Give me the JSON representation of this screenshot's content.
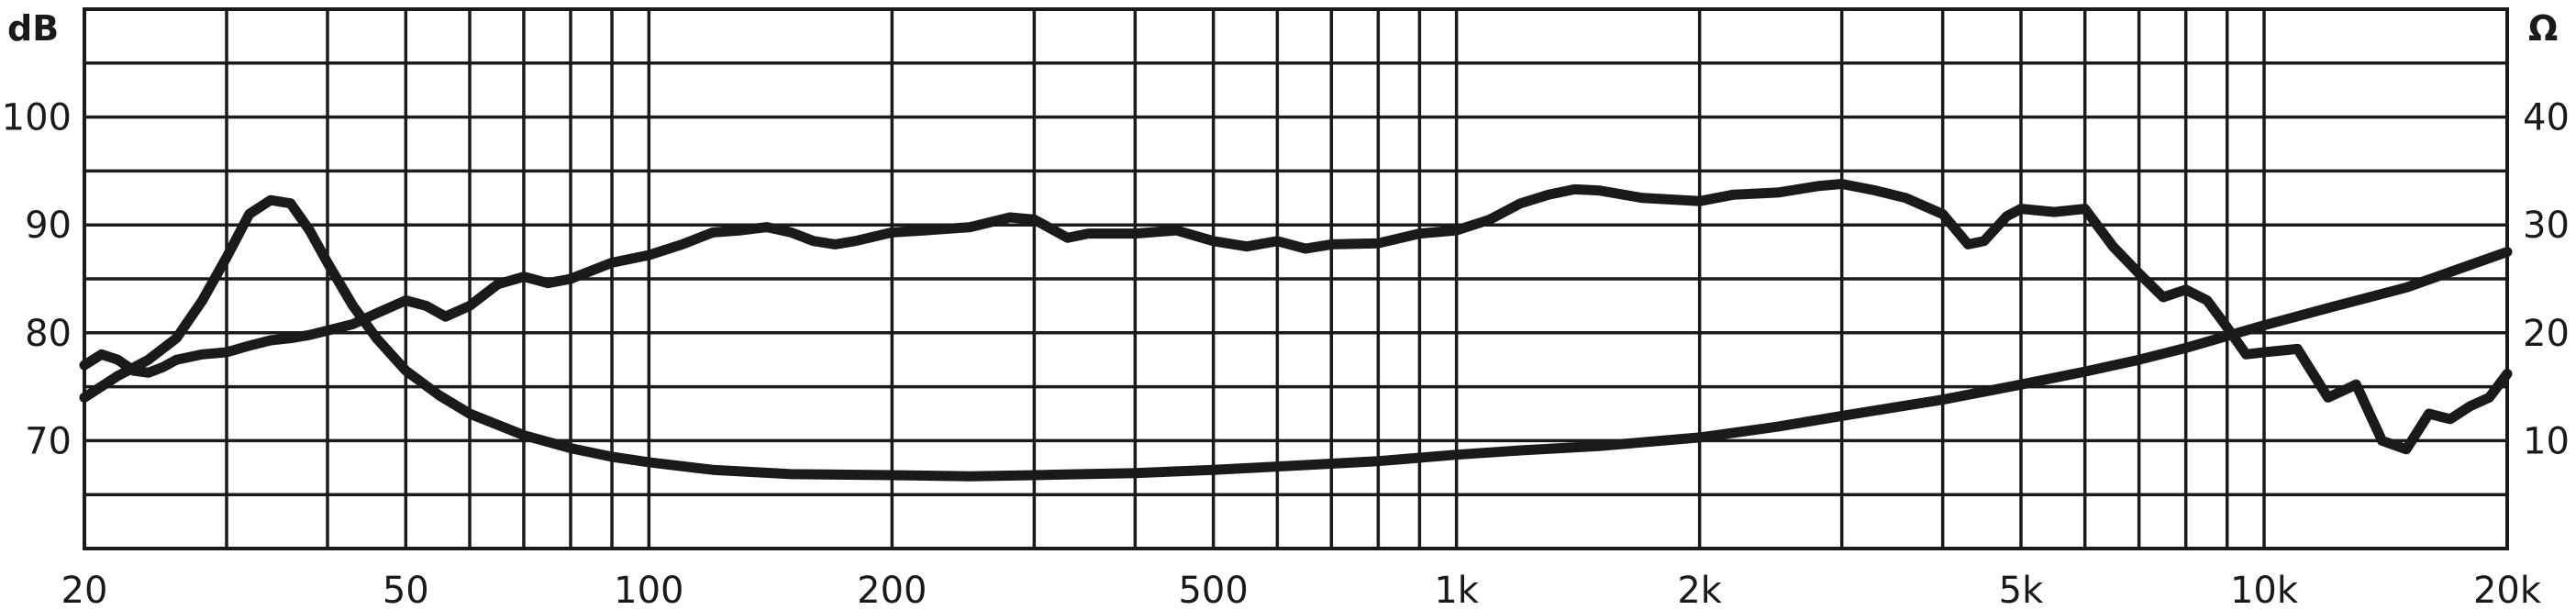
{
  "chart_data": {
    "type": "line",
    "title": "",
    "xlabel": "",
    "x_scale": "log",
    "xlim": [
      20,
      20000
    ],
    "x_ticks": [
      {
        "value": 20,
        "label": "20"
      },
      {
        "value": 50,
        "label": "50"
      },
      {
        "value": 100,
        "label": "100"
      },
      {
        "value": 200,
        "label": "200"
      },
      {
        "value": 500,
        "label": "500"
      },
      {
        "value": 1000,
        "label": "1k"
      },
      {
        "value": 2000,
        "label": "2k"
      },
      {
        "value": 5000,
        "label": "5k"
      },
      {
        "value": 10000,
        "label": "10k"
      },
      {
        "value": 20000,
        "label": "20k"
      }
    ],
    "y_left": {
      "unit": "dB",
      "ylim": [
        60,
        110
      ],
      "ticks": [
        {
          "value": 70,
          "label": "70"
        },
        {
          "value": 80,
          "label": "80"
        },
        {
          "value": 90,
          "label": "90"
        },
        {
          "value": 100,
          "label": "100"
        }
      ]
    },
    "y_right": {
      "unit": "Ω",
      "ylim": [
        0,
        50
      ],
      "ticks": [
        {
          "value": 10,
          "label": "10"
        },
        {
          "value": 20,
          "label": "20"
        },
        {
          "value": 30,
          "label": "30"
        },
        {
          "value": 40,
          "label": "40"
        }
      ]
    },
    "grid": true,
    "color": "#1a1a1a",
    "series": [
      {
        "axis": "left",
        "x": [
          20,
          21,
          22,
          23,
          24,
          25,
          26,
          28,
          30,
          32,
          34,
          36,
          38,
          40,
          43,
          46,
          50,
          53,
          56,
          60,
          65,
          70,
          75,
          80,
          90,
          100,
          110,
          120,
          130,
          140,
          150,
          160,
          170,
          180,
          200,
          220,
          250,
          280,
          300,
          330,
          350,
          400,
          450,
          500,
          550,
          600,
          650,
          700,
          800,
          900,
          1000,
          1100,
          1200,
          1300,
          1400,
          1500,
          1700,
          2000,
          2200,
          2500,
          2800,
          3000,
          3300,
          3600,
          4000,
          4300,
          4500,
          4800,
          5000,
          5500,
          6000,
          6500,
          7000,
          7500,
          8000,
          8500,
          9000,
          9500,
          10000,
          11000,
          12000,
          13000,
          14000,
          15000,
          16000,
          17000,
          18000,
          19000,
          20000
        ],
        "values": [
          77,
          78,
          77.5,
          76.5,
          76.3,
          76.8,
          77.5,
          78,
          78.2,
          78.8,
          79.3,
          79.5,
          79.8,
          80.2,
          80.8,
          81.8,
          83,
          82.5,
          81.5,
          82.5,
          84.5,
          85.2,
          84.6,
          85,
          86.5,
          87.2,
          88.2,
          89.3,
          89.5,
          89.8,
          89.3,
          88.5,
          88.2,
          88.5,
          89.3,
          89.5,
          89.8,
          90.7,
          90.5,
          88.8,
          89.2,
          89.2,
          89.5,
          88.5,
          88,
          88.5,
          87.8,
          88.2,
          88.3,
          89.2,
          89.5,
          90.5,
          92,
          92.8,
          93.3,
          93.2,
          92.5,
          92.2,
          92.8,
          93,
          93.6,
          93.8,
          93.2,
          92.5,
          91,
          88.2,
          88.5,
          90.8,
          91.5,
          91.2,
          91.5,
          88,
          85.5,
          83.3,
          84,
          83,
          80.5,
          78,
          78.2,
          78.5,
          74,
          75.2,
          70,
          69.2,
          72.5,
          72,
          73.2,
          74,
          76.2
        ]
      },
      {
        "axis": "right",
        "x": [
          20,
          22,
          24,
          26,
          28,
          30,
          32,
          34,
          36,
          38,
          40,
          43,
          46,
          50,
          55,
          60,
          70,
          80,
          90,
          100,
          120,
          150,
          200,
          250,
          300,
          400,
          500,
          600,
          800,
          1000,
          1200,
          1500,
          2000,
          2500,
          3000,
          4000,
          5000,
          6000,
          7000,
          8000,
          10000,
          12000,
          15000,
          20000
        ],
        "values": [
          14,
          16,
          17.5,
          19.5,
          23,
          27,
          31,
          32.3,
          32,
          29.5,
          26.5,
          22.5,
          19.5,
          16.5,
          14.2,
          12.5,
          10.5,
          9.3,
          8.5,
          8,
          7.3,
          6.9,
          6.8,
          6.7,
          6.8,
          7,
          7.3,
          7.6,
          8.1,
          8.7,
          9.1,
          9.5,
          10.3,
          11.3,
          12.3,
          13.8,
          15.2,
          16.4,
          17.5,
          18.6,
          20.7,
          22.3,
          24.2,
          27.5
        ]
      }
    ]
  }
}
